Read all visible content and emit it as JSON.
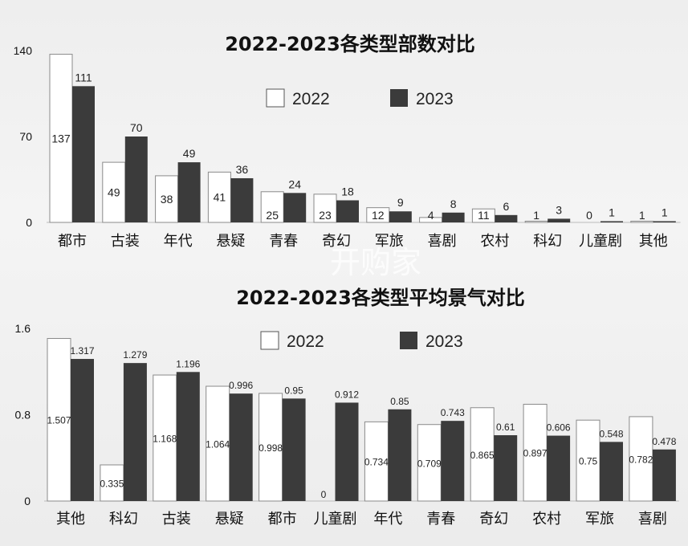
{
  "watermark": {
    "text": "开购家"
  },
  "chart_data": [
    {
      "type": "bar",
      "title": "2022-2023各类型部数对比",
      "xlabel": "",
      "ylabel": "",
      "ylim": [
        0,
        140
      ],
      "yticks": [
        0,
        70,
        140
      ],
      "legend_position": "top-center",
      "categories": [
        "都市",
        "古装",
        "年代",
        "悬疑",
        "青春",
        "奇幻",
        "军旅",
        "喜剧",
        "农村",
        "科幻",
        "儿童剧",
        "其他"
      ],
      "series": [
        {
          "name": "2022",
          "color": "#ffffff",
          "values": [
            137,
            49,
            38,
            41,
            25,
            23,
            12,
            4,
            11,
            1,
            0,
            1
          ]
        },
        {
          "name": "2023",
          "color": "#3b3b3b",
          "values": [
            111,
            70,
            49,
            36,
            24,
            18,
            9,
            8,
            6,
            3,
            1,
            1
          ]
        }
      ]
    },
    {
      "type": "bar",
      "title": "2022-2023各类型平均景气对比",
      "xlabel": "",
      "ylabel": "",
      "ylim": [
        0,
        1.6
      ],
      "yticks": [
        0,
        0.8,
        1.6
      ],
      "legend_position": "top-center",
      "categories": [
        "其他",
        "科幻",
        "古装",
        "悬疑",
        "都市",
        "儿童剧",
        "年代",
        "青春",
        "奇幻",
        "农村",
        "军旅",
        "喜剧"
      ],
      "series": [
        {
          "name": "2022",
          "color": "#ffffff",
          "values": [
            1.507,
            0.335,
            1.168,
            1.064,
            0.998,
            0,
            0.734,
            0.709,
            0.865,
            0.897,
            0.75,
            0.782
          ]
        },
        {
          "name": "2023",
          "color": "#3b3b3b",
          "values": [
            1.317,
            1.279,
            1.196,
            0.996,
            0.95,
            0.912,
            0.85,
            0.743,
            0.61,
            0.606,
            0.548,
            0.478
          ]
        }
      ]
    }
  ]
}
